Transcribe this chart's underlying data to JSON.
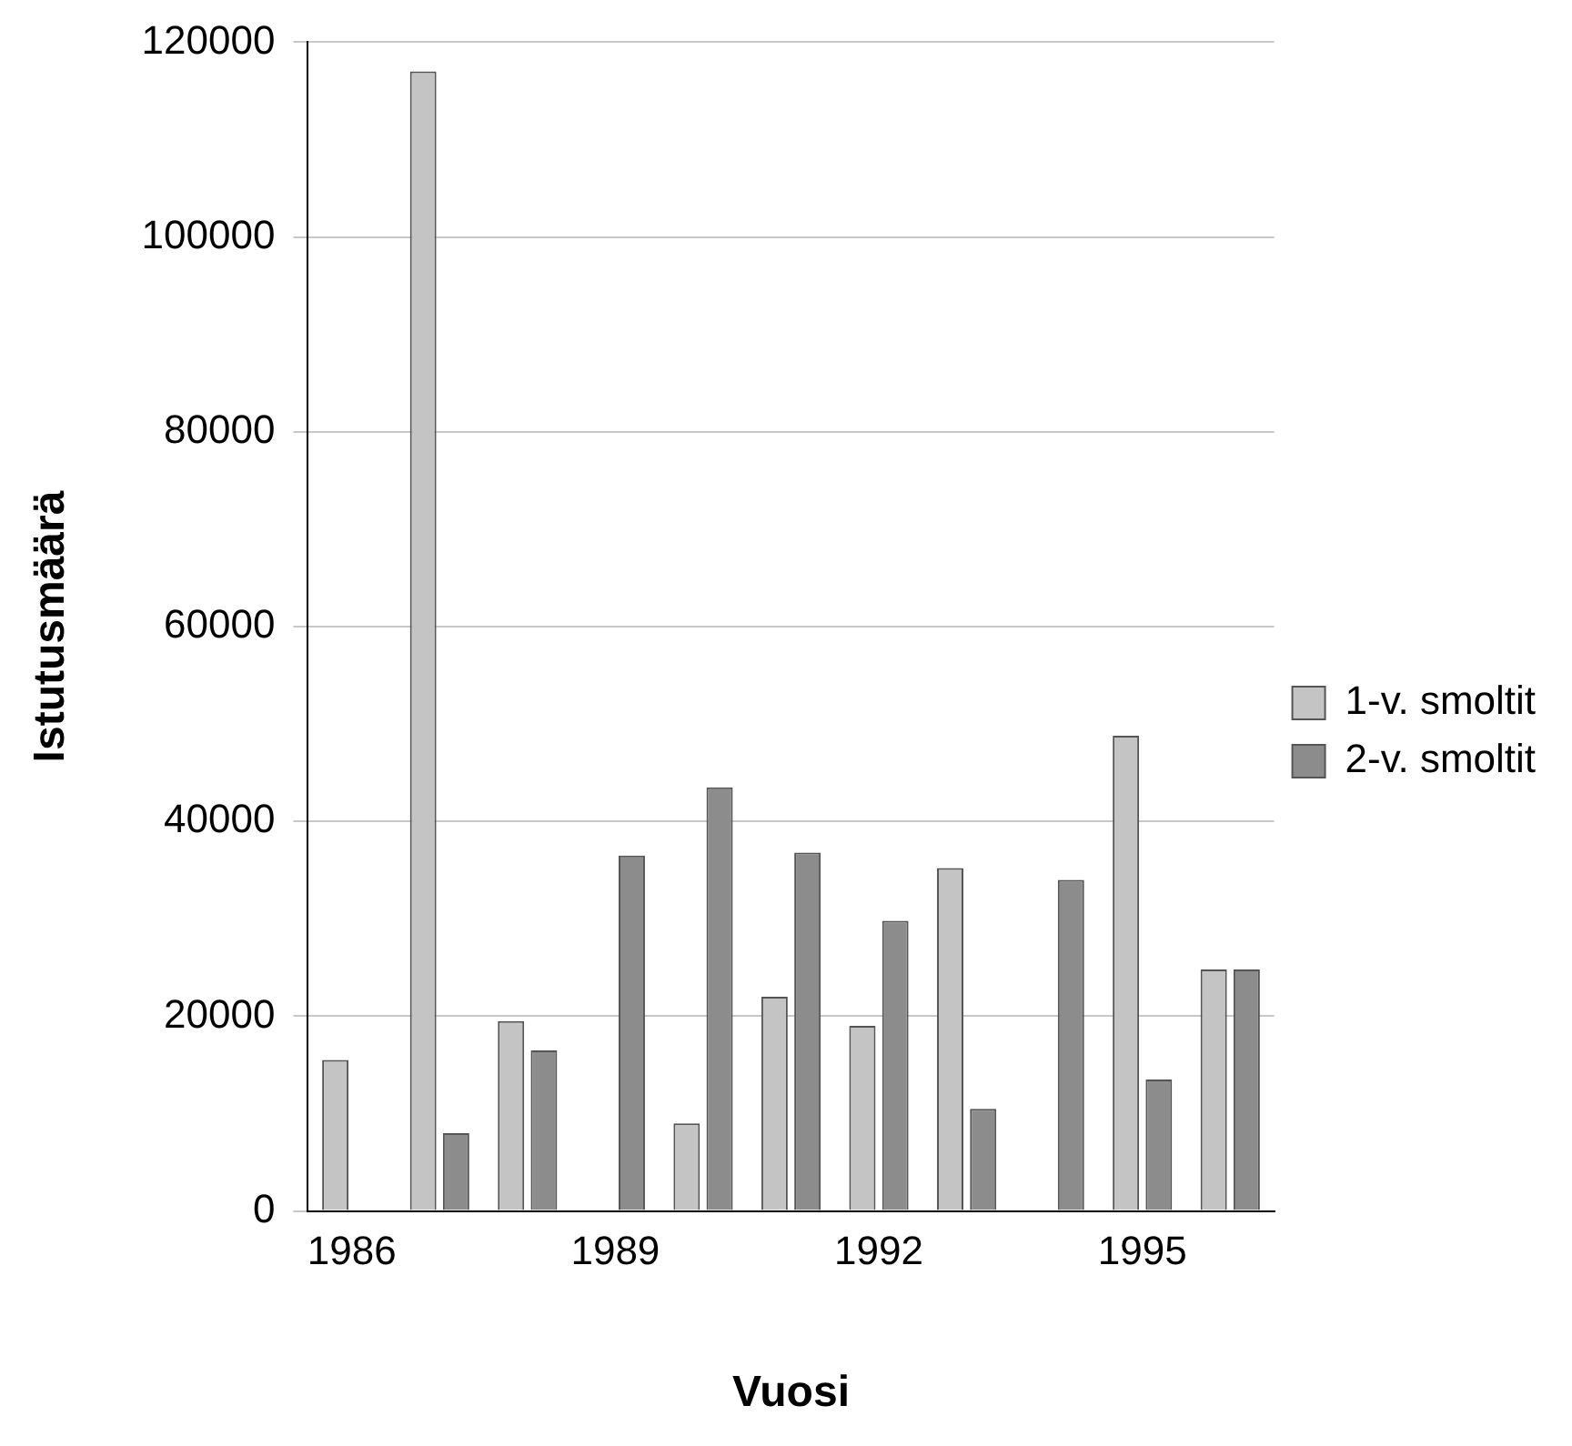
{
  "chart_data": {
    "type": "bar",
    "xlabel": "Vuosi",
    "ylabel": "Istutusmäärä",
    "categories": [
      "1986",
      null,
      null,
      "1989",
      null,
      null,
      "1992",
      null,
      null,
      "1995",
      null
    ],
    "series": [
      {
        "name": "1-v. smoltit",
        "color": "#c4c4c4",
        "values": [
          15500,
          117000,
          19500,
          0,
          9000,
          22000,
          19000,
          35200,
          0,
          48800,
          24800
        ]
      },
      {
        "name": "2-v. smoltit",
        "color": "#8c8c8c",
        "values": [
          0,
          8000,
          16500,
          36500,
          43500,
          36800,
          29800,
          10500,
          34000,
          13500,
          24800
        ]
      }
    ],
    "ylim": [
      0,
      120000
    ],
    "yticks": [
      0,
      20000,
      40000,
      60000,
      80000,
      100000,
      120000
    ],
    "grid": "y",
    "legend": "right"
  }
}
